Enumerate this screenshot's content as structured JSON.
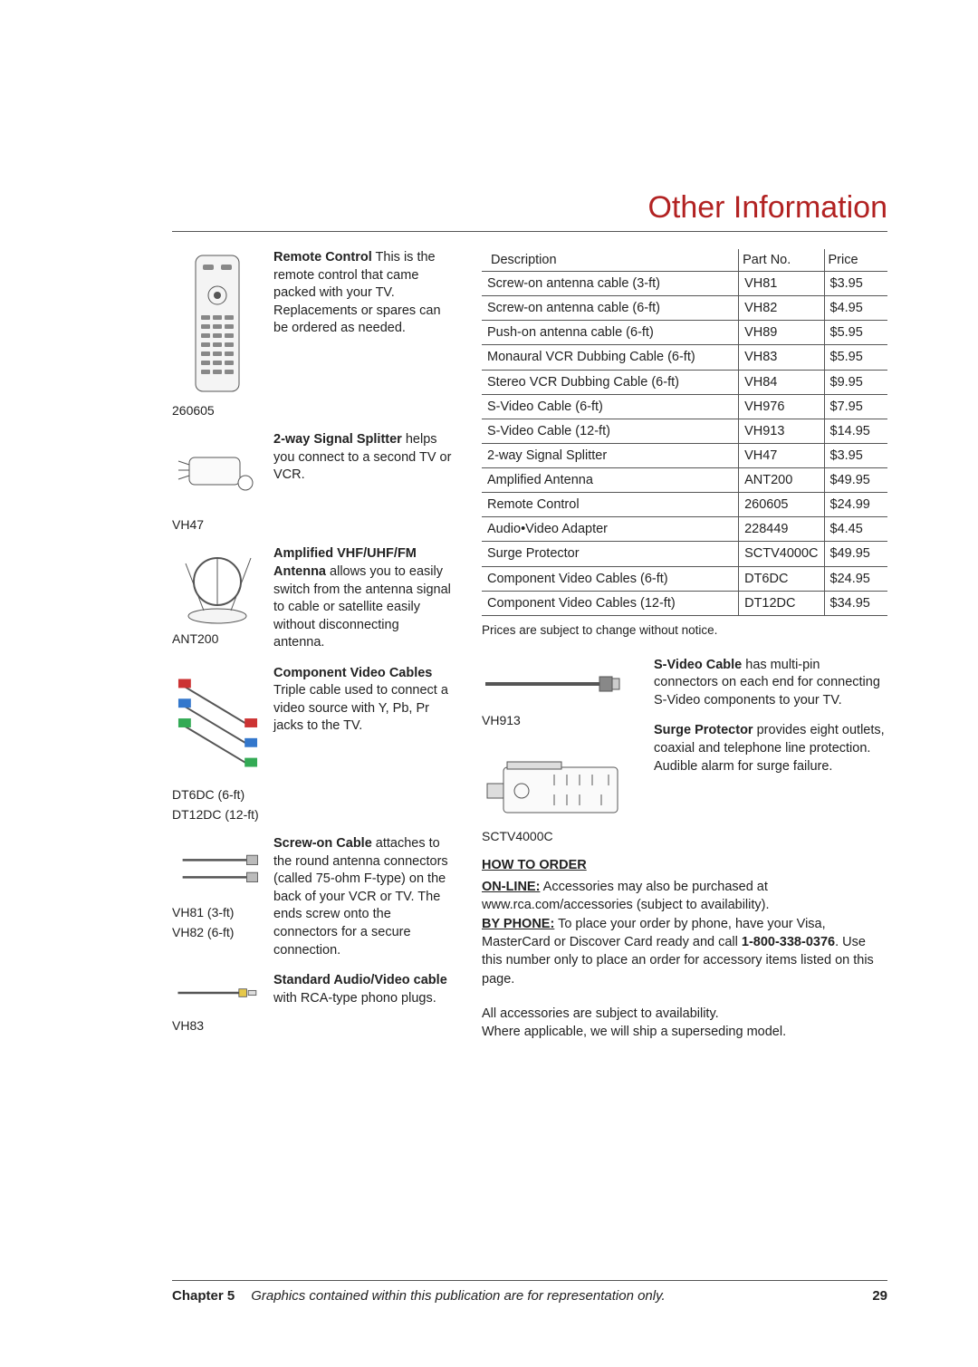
{
  "pageTitle": "Other Information",
  "left": {
    "remote": {
      "caption": "260605",
      "lead": "Remote Control",
      "rest": " This is the remote control that came packed with your TV.  Replacements or spares can be ordered as needed."
    },
    "splitter": {
      "caption": "VH47",
      "lead": "2-way Signal Splitter",
      "rest": " helps you connect to a second TV or VCR."
    },
    "antenna": {
      "caption": "ANT200",
      "lead": "Amplified VHF/UHF/FM Antenna",
      "rest": " allows you to easily switch from the antenna signal to cable or satellite easily without disconnecting antenna."
    },
    "compvid": {
      "caption1": "DT6DC (6-ft)",
      "caption2": "DT12DC (12-ft)",
      "lead": "Component Video Cables",
      "rest": "  Triple cable used to connect a video source with Y, Pb, Pr jacks to the TV."
    },
    "screwon": {
      "caption1": "VH81 (3-ft)",
      "caption2": "VH82 (6-ft)",
      "lead": "Screw-on Cable",
      "rest": " attaches to the round antenna connectors (called 75-ohm F-type) on the back of your VCR or TV. The ends screw onto the connectors for a secure connection."
    },
    "avcable": {
      "caption": "VH83",
      "lead": "Standard Audio/Video cable",
      "rest": " with RCA-type phono plugs."
    }
  },
  "table": {
    "headers": {
      "desc": "Description",
      "part": "Part No.",
      "price": "Price"
    },
    "rows": [
      {
        "desc": "Screw-on antenna cable (3-ft)",
        "part": "VH81",
        "price": "$3.95"
      },
      {
        "desc": "Screw-on antenna cable (6-ft)",
        "part": "VH82",
        "price": "$4.95"
      },
      {
        "desc": "Push-on antenna cable (6-ft)",
        "part": "VH89",
        "price": "$5.95"
      },
      {
        "desc": "Monaural VCR Dubbing Cable (6-ft)",
        "part": "VH83",
        "price": "$5.95"
      },
      {
        "desc": "Stereo VCR Dubbing Cable (6-ft)",
        "part": "VH84",
        "price": "$9.95"
      },
      {
        "desc": "S-Video Cable (6-ft)",
        "part": "VH976",
        "price": "$7.95"
      },
      {
        "desc": "S-Video Cable (12-ft)",
        "part": "VH913",
        "price": "$14.95"
      },
      {
        "desc": "2-way Signal Splitter",
        "part": "VH47",
        "price": "$3.95"
      },
      {
        "desc": "Amplified Antenna",
        "part": "ANT200",
        "price": "$49.95"
      },
      {
        "desc": "Remote Control",
        "part": "260605",
        "price": "$24.99"
      },
      {
        "desc": "Audio•Video Adapter",
        "part": "228449",
        "price": "$4.45"
      },
      {
        "desc": "Surge Protector",
        "part": "SCTV4000C",
        "price": "$49.95"
      },
      {
        "desc": "Component Video Cables (6-ft)",
        "part": "DT6DC",
        "price": "$24.95"
      },
      {
        "desc": "Component Video Cables (12-ft)",
        "part": "DT12DC",
        "price": "$34.95"
      }
    ],
    "note": "Prices are subject to change without notice."
  },
  "rightProducts": {
    "svideo": {
      "label": "VH913",
      "lead": "S-Video Cable",
      "rest": "  has multi-pin connectors on each end for connecting S-Video components to your TV."
    },
    "surge": {
      "label": "SCTV4000C",
      "lead": "Surge Protector",
      "rest": " provides eight outlets, coaxial and telephone line protection. Audible alarm for surge failure."
    }
  },
  "howto": {
    "title": "HOW TO ORDER",
    "online_label": "ON-LINE:",
    "online": " Accessories may also be purchased at www.rca.com/accessories (subject to availability).",
    "byphone_label": "BY PHONE:",
    "byphone": " To place your order by phone, have your Visa, MasterCard or Discover Card ready and call ",
    "phone": "1-800-338-0376",
    "byphone_after": ". Use this number only to place an order for accessory items listed on this page.",
    "avail1": "All accessories are subject to availability.",
    "avail2": "Where applicable, we will ship a superseding model."
  },
  "footer": {
    "chapter": "Chapter 5",
    "text": "Graphics contained within this publication are for representation only.",
    "page": "29"
  }
}
